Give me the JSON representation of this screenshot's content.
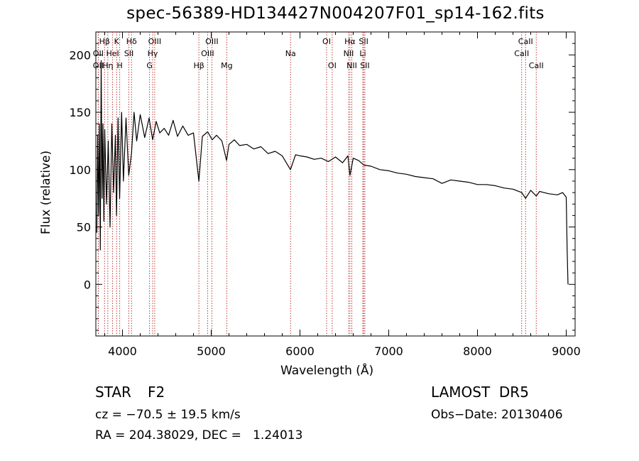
{
  "chart_data": {
    "type": "line",
    "title": "spec-56389-HD134427N004207F01_sp14-162.fits",
    "xlabel": "Wavelength (Å)",
    "ylabel": "Flux (relative)",
    "xlim": [
      3700,
      9100
    ],
    "ylim": [
      -45,
      220
    ],
    "xticks": [
      4000,
      5000,
      6000,
      7000,
      8000,
      9000
    ],
    "yticks": [
      0,
      50,
      100,
      150,
      200
    ],
    "grid": false,
    "series": [
      {
        "color": "#000000",
        "x": [
          3710,
          3720,
          3730,
          3740,
          3750,
          3760,
          3770,
          3780,
          3790,
          3800,
          3820,
          3840,
          3860,
          3880,
          3900,
          3920,
          3933,
          3950,
          3968,
          3990,
          4010,
          4040,
          4070,
          4102,
          4130,
          4160,
          4200,
          4250,
          4300,
          4340,
          4380,
          4420,
          4470,
          4520,
          4570,
          4620,
          4680,
          4740,
          4800,
          4861,
          4900,
          4960,
          5010,
          5060,
          5120,
          5173,
          5200,
          5260,
          5320,
          5400,
          5480,
          5560,
          5640,
          5720,
          5800,
          5893,
          5950,
          6000,
          6080,
          6160,
          6240,
          6320,
          6400,
          6480,
          6540,
          6563,
          6600,
          6660,
          6720,
          6800,
          6900,
          7000,
          7100,
          7200,
          7300,
          7400,
          7500,
          7600,
          7700,
          7800,
          7900,
          8000,
          8100,
          8200,
          8300,
          8400,
          8498,
          8542,
          8600,
          8662,
          8700,
          8800,
          8900,
          8960,
          9000,
          9010,
          9020
        ],
        "y": [
          45,
          130,
          60,
          140,
          30,
          195,
          75,
          140,
          55,
          135,
          70,
          125,
          50,
          140,
          80,
          130,
          60,
          145,
          75,
          150,
          90,
          145,
          95,
          115,
          150,
          125,
          148,
          128,
          145,
          126,
          142,
          132,
          136,
          130,
          143,
          129,
          138,
          130,
          132,
          90,
          129,
          133,
          126,
          130,
          125,
          108,
          122,
          126,
          121,
          122,
          118,
          120,
          114,
          116,
          112,
          100,
          113,
          112,
          111,
          109,
          110,
          107,
          111,
          106,
          112,
          95,
          110,
          108,
          104,
          103,
          100,
          99,
          97,
          96,
          94,
          93,
          92,
          88,
          91,
          90,
          89,
          87,
          87,
          86,
          84,
          83,
          80,
          75,
          82,
          77,
          81,
          79,
          78,
          80,
          76,
          30,
          0
        ]
      }
    ],
    "line_labels": [
      {
        "name": "Hβ",
        "x": 3798,
        "row": 0
      },
      {
        "name": "OII",
        "x": 3727,
        "row": 1
      },
      {
        "name": "OII",
        "x": 3727,
        "row": 2
      },
      {
        "name": "HeI",
        "x": 3889,
        "row": 1
      },
      {
        "name": "K",
        "x": 3934,
        "row": 0
      },
      {
        "name": "Hη",
        "x": 3835,
        "row": 2
      },
      {
        "name": "H",
        "x": 3969,
        "row": 2
      },
      {
        "name": "Hδ",
        "x": 4102,
        "row": 0
      },
      {
        "name": "SII",
        "x": 4072,
        "row": 1
      },
      {
        "name": "OIII",
        "x": 4363,
        "row": 0
      },
      {
        "name": "Hγ",
        "x": 4340,
        "row": 1
      },
      {
        "name": "G",
        "x": 4305,
        "row": 2
      },
      {
        "name": "Hβ",
        "x": 4861,
        "row": 2
      },
      {
        "name": "OIII",
        "x": 5007,
        "row": 0
      },
      {
        "name": "OIII",
        "x": 4959,
        "row": 1
      },
      {
        "name": "Mg",
        "x": 5175,
        "row": 2
      },
      {
        "name": "Na",
        "x": 5894,
        "row": 1
      },
      {
        "name": "OI",
        "x": 6300,
        "row": 0
      },
      {
        "name": "OI",
        "x": 6363,
        "row": 2
      },
      {
        "name": "Hα",
        "x": 6563,
        "row": 0
      },
      {
        "name": "NII",
        "x": 6548,
        "row": 1
      },
      {
        "name": "NII",
        "x": 6584,
        "row": 2
      },
      {
        "name": "SII",
        "x": 6717,
        "row": 0
      },
      {
        "name": "Li",
        "x": 6708,
        "row": 1
      },
      {
        "name": "SII",
        "x": 6731,
        "row": 2
      },
      {
        "name": "CaII",
        "x": 8542,
        "row": 0
      },
      {
        "name": "CaII",
        "x": 8498,
        "row": 1
      },
      {
        "name": "CaII",
        "x": 8662,
        "row": 2
      }
    ]
  },
  "info": {
    "object_class": "STAR",
    "subclass": "F2",
    "survey": "LAMOST  DR5",
    "cz": "cz = −70.5 ± 19.5 km/s",
    "obs_date": "Obs−Date: 20130406",
    "radec": "RA = 204.38029, DEC =   1.24013"
  }
}
